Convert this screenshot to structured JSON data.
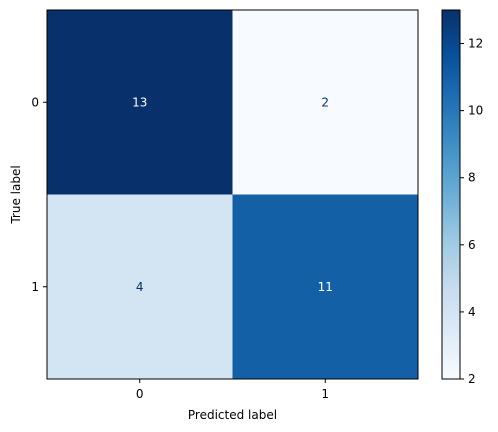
{
  "chart_data": {
    "type": "heatmap",
    "title": "",
    "xlabel": "Predicted label",
    "ylabel": "True label",
    "x_categories": [
      "0",
      "1"
    ],
    "y_categories": [
      "0",
      "1"
    ],
    "values": [
      [
        13,
        2
      ],
      [
        4,
        11
      ]
    ],
    "colormap": "Blues",
    "colormap_stops": [
      "#f7fbff",
      "#deebf7",
      "#c6dbef",
      "#9ecae1",
      "#6baed6",
      "#4292c6",
      "#2171b5",
      "#08519c",
      "#08306b"
    ],
    "colorbar": {
      "range": [
        2,
        13
      ],
      "ticks": [
        2,
        4,
        6,
        8,
        10,
        12
      ],
      "placement": "right"
    },
    "grid": false,
    "text_colors": {
      "light": "#ffffff",
      "dark": "#08306b"
    }
  }
}
